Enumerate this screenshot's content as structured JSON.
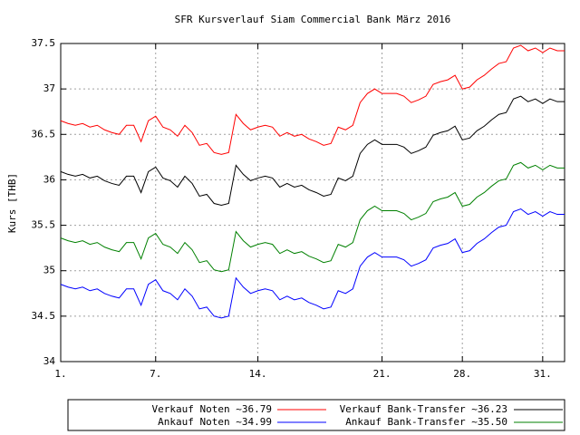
{
  "chart_data": {
    "type": "line",
    "title": "SFR Kursverlauf Siam Commercial Bank März 2016",
    "y_label": "Kurs [THB]",
    "x": [
      0,
      1,
      2,
      3,
      4,
      5,
      6,
      7,
      8,
      9,
      10,
      11,
      12,
      13,
      14,
      15,
      16,
      17,
      18,
      19,
      20,
      21,
      22,
      23,
      24,
      25,
      26,
      27,
      28,
      29,
      30,
      31,
      32,
      33,
      34,
      35,
      36,
      37,
      38,
      39,
      40,
      41,
      42,
      43,
      44,
      45,
      46,
      47,
      48,
      49,
      50,
      51,
      52,
      53,
      54,
      55,
      56,
      57,
      58,
      59,
      60,
      61,
      62,
      63,
      64,
      65,
      66,
      67,
      68,
      69
    ],
    "xlim": [
      0,
      69
    ],
    "xticks": [
      {
        "value": 0,
        "label": "1."
      },
      {
        "value": 13,
        "label": "7."
      },
      {
        "value": 27,
        "label": "14."
      },
      {
        "value": 44,
        "label": "21."
      },
      {
        "value": 55,
        "label": "28."
      },
      {
        "value": 66,
        "label": "31."
      }
    ],
    "ylim": [
      34,
      37.5
    ],
    "yticks": [
      34,
      34.5,
      35,
      35.5,
      36,
      36.5,
      37,
      37.5
    ],
    "grid": true,
    "series": [
      {
        "name": "Verkauf Noten ~36.79",
        "color": "#ff0000",
        "values": [
          36.65,
          36.62,
          36.6,
          36.62,
          36.58,
          36.6,
          36.55,
          36.52,
          36.5,
          36.6,
          36.6,
          36.42,
          36.65,
          36.7,
          36.58,
          36.55,
          36.48,
          36.6,
          36.52,
          36.38,
          36.4,
          36.3,
          36.28,
          36.3,
          36.72,
          36.62,
          36.55,
          36.58,
          36.6,
          36.58,
          36.48,
          36.52,
          36.48,
          36.5,
          36.45,
          36.42,
          36.38,
          36.4,
          36.58,
          36.55,
          36.6,
          36.85,
          36.95,
          37.0,
          36.95,
          36.95,
          36.95,
          36.92,
          36.85,
          36.88,
          36.92,
          37.05,
          37.08,
          37.1,
          37.15,
          37.0,
          37.02,
          37.1,
          37.15,
          37.22,
          37.28,
          37.3,
          37.45,
          37.48,
          37.42,
          37.45,
          37.4,
          37.45,
          37.42,
          37.42
        ]
      },
      {
        "name": "Verkauf Bank-Transfer ~36.23",
        "color": "#000000",
        "values": [
          36.09,
          36.06,
          36.04,
          36.06,
          36.02,
          36.04,
          35.99,
          35.96,
          35.94,
          36.04,
          36.04,
          35.86,
          36.09,
          36.14,
          36.02,
          35.99,
          35.92,
          36.04,
          35.96,
          35.82,
          35.84,
          35.74,
          35.72,
          35.74,
          36.16,
          36.06,
          35.99,
          36.02,
          36.04,
          36.02,
          35.92,
          35.96,
          35.92,
          35.94,
          35.89,
          35.86,
          35.82,
          35.84,
          36.02,
          35.99,
          36.04,
          36.29,
          36.39,
          36.44,
          36.39,
          36.39,
          36.39,
          36.36,
          36.29,
          36.32,
          36.36,
          36.49,
          36.52,
          36.54,
          36.59,
          36.44,
          36.46,
          36.54,
          36.59,
          36.66,
          36.72,
          36.74,
          36.89,
          36.92,
          36.86,
          36.89,
          36.84,
          36.89,
          36.86,
          36.86
        ]
      },
      {
        "name": "Ankauf Noten ~34.99",
        "color": "#0000ff",
        "values": [
          34.85,
          34.82,
          34.8,
          34.82,
          34.78,
          34.8,
          34.75,
          34.72,
          34.7,
          34.8,
          34.8,
          34.62,
          34.85,
          34.9,
          34.78,
          34.75,
          34.68,
          34.8,
          34.72,
          34.58,
          34.6,
          34.5,
          34.48,
          34.5,
          34.92,
          34.82,
          34.75,
          34.78,
          34.8,
          34.78,
          34.68,
          34.72,
          34.68,
          34.7,
          34.65,
          34.62,
          34.58,
          34.6,
          34.78,
          34.75,
          34.8,
          35.05,
          35.15,
          35.2,
          35.15,
          35.15,
          35.15,
          35.12,
          35.05,
          35.08,
          35.12,
          35.25,
          35.28,
          35.3,
          35.35,
          35.2,
          35.22,
          35.3,
          35.35,
          35.42,
          35.48,
          35.5,
          35.65,
          35.68,
          35.62,
          35.65,
          35.6,
          35.65,
          35.62,
          35.62
        ]
      },
      {
        "name": "Ankauf Bank-Transfer ~35.50",
        "color": "#008000",
        "values": [
          35.36,
          35.33,
          35.31,
          35.33,
          35.29,
          35.31,
          35.26,
          35.23,
          35.21,
          35.31,
          35.31,
          35.13,
          35.36,
          35.41,
          35.29,
          35.26,
          35.19,
          35.31,
          35.23,
          35.09,
          35.11,
          35.01,
          34.99,
          35.01,
          35.43,
          35.33,
          35.26,
          35.29,
          35.31,
          35.29,
          35.19,
          35.23,
          35.19,
          35.21,
          35.16,
          35.13,
          35.09,
          35.11,
          35.29,
          35.26,
          35.31,
          35.56,
          35.66,
          35.71,
          35.66,
          35.66,
          35.66,
          35.63,
          35.56,
          35.59,
          35.63,
          35.76,
          35.79,
          35.81,
          35.86,
          35.71,
          35.73,
          35.81,
          35.86,
          35.93,
          35.99,
          36.01,
          36.16,
          36.19,
          36.13,
          36.16,
          36.11,
          36.16,
          36.13,
          36.13
        ]
      }
    ]
  }
}
